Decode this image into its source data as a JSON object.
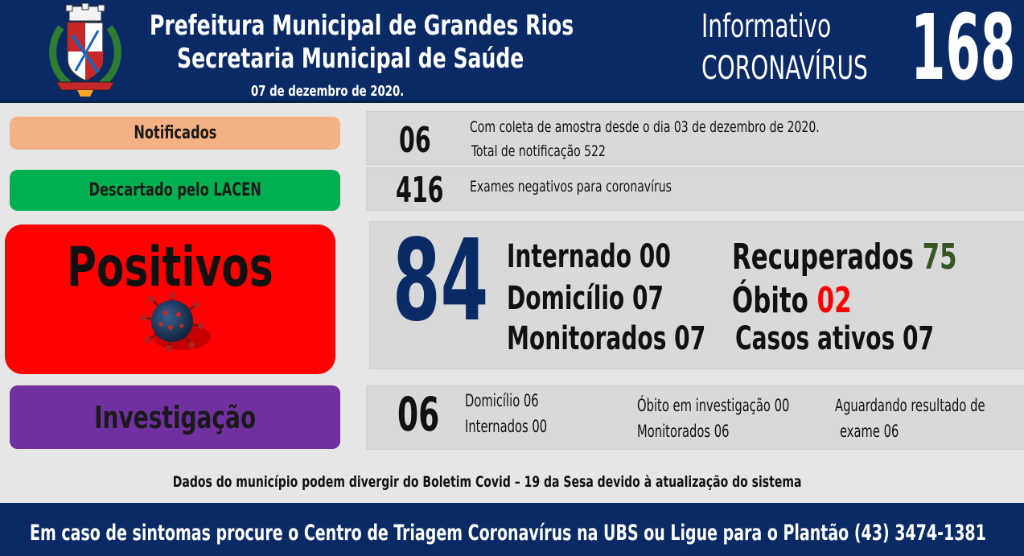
{
  "header": {
    "title_line1": "Prefeitura Municipal de Grandes Rios",
    "title_line2": "Secretaria Municipal de Saúde",
    "date": "07 de dezembro  de 2020.",
    "info_line1": "Informativo",
    "info_line2": "CORONAVÍRUS",
    "bulletin_number": "168"
  },
  "categories": {
    "notificados": "Notificados",
    "descartado": "Descartado  pelo LACEN",
    "positivos": "Positivos",
    "investigacao": "Investigação"
  },
  "notificados": {
    "value": "06",
    "line1": "Com coleta de amostra desde o dia 03 de dezembro de 2020.",
    "line2": "Total de notificação  522"
  },
  "descartado": {
    "value": "416",
    "text": "Exames negativos  para coronavírus"
  },
  "positivos": {
    "value": "84",
    "internado": "Internado 00",
    "domicilio": "Domicílio 07",
    "monitorados": "Monitorados 07",
    "recuperados_label": "Recuperados",
    "recuperados_value": "75",
    "obito_label": "Óbito",
    "obito_value": "02",
    "casos_ativos": "Casos ativos 07"
  },
  "investigacao": {
    "value": "06",
    "domicilio": "Domicílio 06",
    "internados": "Internados 00",
    "obito_investigacao": "Óbito  em investigação  00",
    "monitorados": "Monitorados  06",
    "aguardando_line1": "Aguardando resultado de",
    "aguardando_line2": "exame 06"
  },
  "disclaimer": "Dados do município  podem  divergir  do Boletim  Covid – 19 da Sesa devido à atualização  do sistema",
  "footer": "Em caso de sintomas  procure  o Centro de Triagem  Coronavírus  na UBS ou Ligue para o Plantão  (43) 3474-1381",
  "colors": {
    "header_bg": "#0a2a66",
    "notificados": "#f4b183",
    "descartado": "#00b050",
    "positivos": "#ff0000",
    "investigacao": "#7030a0",
    "recuperados": "#375623",
    "obito": "#ff0000"
  },
  "icons": {
    "logo": "municipal-coat-of-arms",
    "virus": "coronavirus-icon"
  }
}
